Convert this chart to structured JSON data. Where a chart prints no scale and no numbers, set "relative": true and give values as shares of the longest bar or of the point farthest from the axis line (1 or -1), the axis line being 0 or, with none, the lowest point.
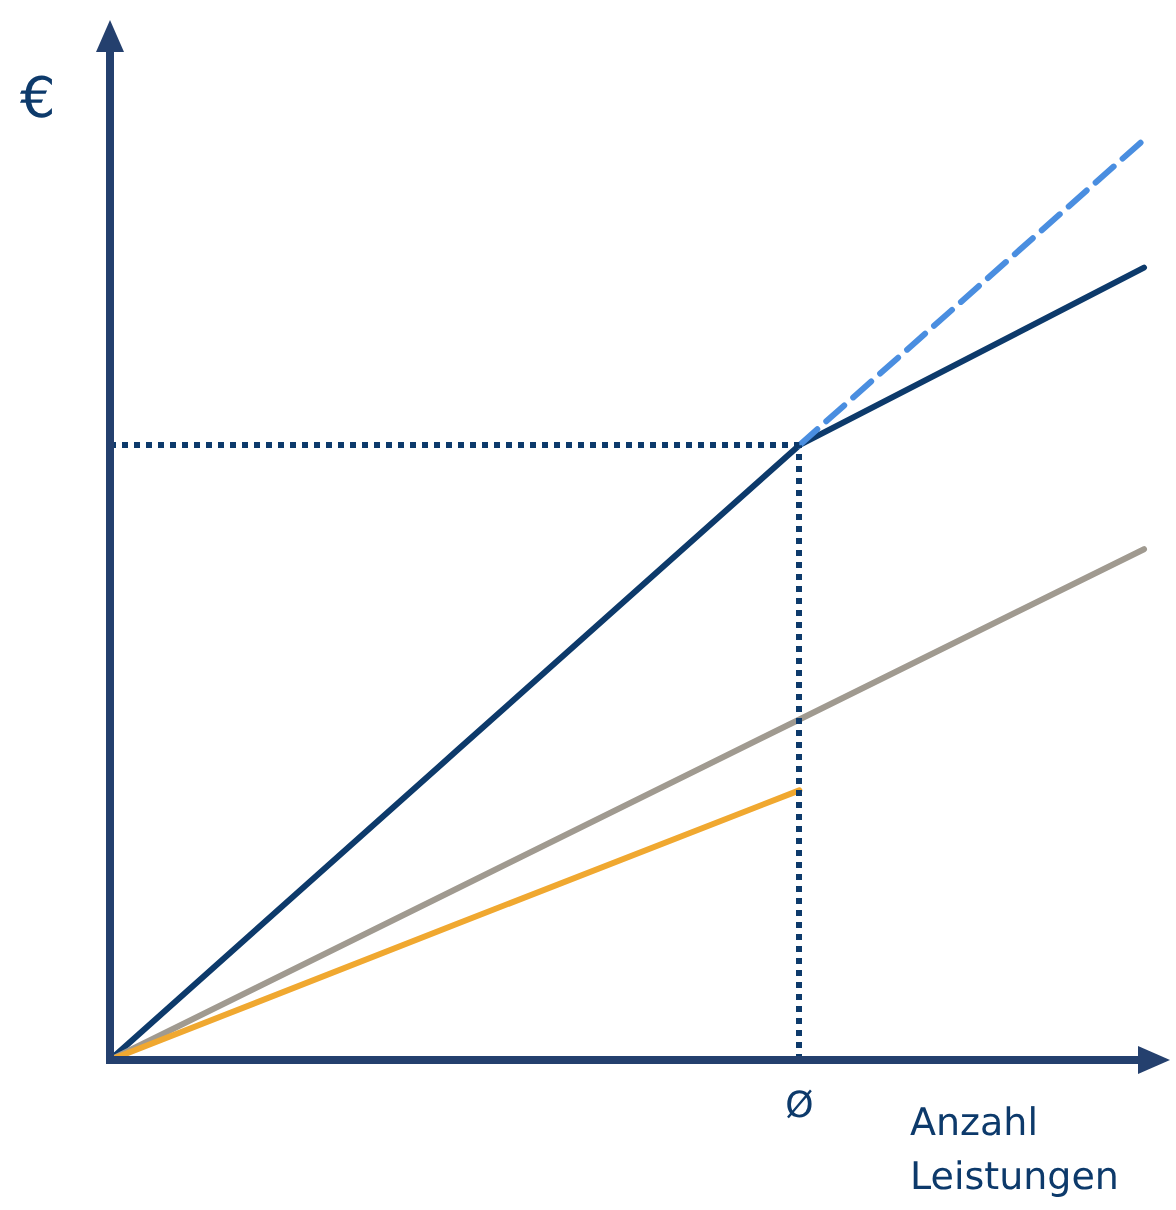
{
  "chart_data": {
    "type": "line",
    "relative": true,
    "ylabel": "€",
    "xlabel": "Anzahl Leistungen",
    "categories": [
      null,
      null,
      null,
      null
    ],
    "marker": "none",
    "grid": false,
    "annotations": [
      "Ø"
    ],
    "series": [
      {
        "color": "#0d3a6b",
        "values": [
          0,
          0.334,
          0.668,
          0.861
        ]
      },
      {
        "color": "#4a8ee0",
        "values": [
          null,
          null,
          0.668,
          1
        ],
        "line_style": "dashed"
      },
      {
        "color": "#a09a90",
        "values": [
          0,
          0.185,
          0.37,
          0.555
        ]
      },
      {
        "color": "#f0a830",
        "values": [
          0,
          0.147,
          0.293,
          null
        ]
      }
    ],
    "ref_lines": [
      {
        "axis": "y",
        "value": 0.668,
        "color": "#0d3a6b",
        "line_style": "dotted"
      }
    ]
  }
}
